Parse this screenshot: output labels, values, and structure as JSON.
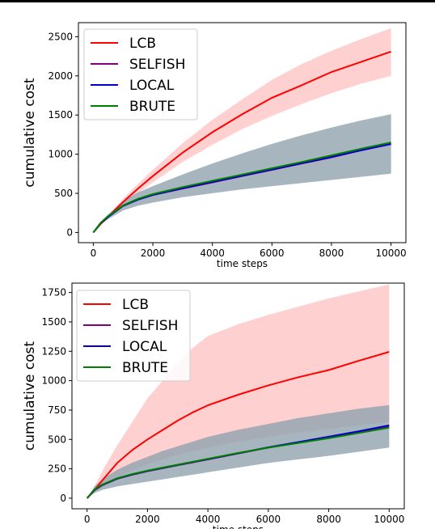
{
  "colors": {
    "LCB": "#ff0000",
    "SELFISH": "#800080",
    "LOCAL": "#0000cc",
    "BRUTE": "#008000",
    "LCB_band": "#ffb0b0",
    "SELFISH_band": "#b9a0cf",
    "LOCAL_band": "#7a86b8",
    "BRUTE_band": "#9fc49f"
  },
  "chart_data": [
    {
      "type": "line",
      "xlabel": "time steps",
      "ylabel": "cumulative cost",
      "xlim": [
        -500,
        10500
      ],
      "ylim": [
        -130,
        2680
      ],
      "xticks": [
        0,
        2000,
        4000,
        6000,
        8000,
        10000
      ],
      "yticks": [
        0,
        500,
        1000,
        1500,
        2000,
        2500
      ],
      "legend": "top-left",
      "grid": false,
      "x": [
        0,
        250,
        500,
        1000,
        1500,
        2000,
        3000,
        4000,
        5000,
        6000,
        7000,
        8000,
        9000,
        10000
      ],
      "series": [
        {
          "name": "LCB",
          "values": [
            0,
            110,
            200,
            390,
            560,
            720,
            1020,
            1280,
            1510,
            1720,
            1880,
            2050,
            2180,
            2310
          ],
          "lower": [
            0,
            100,
            180,
            350,
            500,
            640,
            900,
            1120,
            1320,
            1490,
            1640,
            1780,
            1900,
            2000
          ],
          "upper": [
            0,
            125,
            225,
            430,
            620,
            800,
            1140,
            1440,
            1700,
            1950,
            2150,
            2320,
            2470,
            2610
          ]
        },
        {
          "name": "SELFISH",
          "values": [
            0,
            120,
            200,
            340,
            420,
            480,
            560,
            640,
            720,
            800,
            880,
            960,
            1050,
            1130
          ],
          "lower": [
            0,
            105,
            170,
            280,
            340,
            380,
            450,
            500,
            550,
            590,
            630,
            670,
            710,
            750
          ],
          "upper": [
            0,
            135,
            230,
            400,
            510,
            590,
            740,
            880,
            1010,
            1130,
            1240,
            1340,
            1430,
            1510
          ]
        },
        {
          "name": "LOCAL",
          "values": [
            0,
            120,
            200,
            340,
            420,
            480,
            565,
            645,
            725,
            805,
            885,
            965,
            1050,
            1130
          ],
          "lower": [
            0,
            105,
            172,
            282,
            342,
            382,
            452,
            502,
            552,
            592,
            632,
            672,
            712,
            752
          ],
          "upper": [
            0,
            135,
            230,
            400,
            510,
            590,
            740,
            880,
            1010,
            1130,
            1240,
            1340,
            1430,
            1510
          ]
        },
        {
          "name": "BRUTE",
          "values": [
            0,
            125,
            210,
            345,
            430,
            490,
            580,
            660,
            740,
            820,
            900,
            985,
            1070,
            1150
          ],
          "lower": [
            0,
            108,
            175,
            285,
            345,
            385,
            455,
            505,
            555,
            595,
            635,
            675,
            715,
            755
          ],
          "upper": [
            0,
            138,
            232,
            402,
            512,
            592,
            742,
            882,
            1012,
            1132,
            1242,
            1342,
            1432,
            1512
          ]
        }
      ]
    },
    {
      "type": "line",
      "xlabel": "time steps",
      "ylabel": "cumulative cost",
      "xlim": [
        -500,
        10500
      ],
      "ylim": [
        -90,
        1830
      ],
      "xticks": [
        0,
        2000,
        4000,
        6000,
        8000,
        10000
      ],
      "yticks": [
        0,
        250,
        500,
        750,
        1000,
        1250,
        1500,
        1750
      ],
      "legend": "top-left",
      "grid": false,
      "x": [
        0,
        250,
        500,
        1000,
        1500,
        2000,
        2500,
        3000,
        3500,
        4000,
        5000,
        6000,
        7000,
        8000,
        9000,
        10000
      ],
      "series": [
        {
          "name": "LCB",
          "values": [
            0,
            70,
            150,
            300,
            410,
            500,
            580,
            660,
            730,
            790,
            880,
            960,
            1030,
            1090,
            1170,
            1245
          ],
          "lower": [
            0,
            45,
            95,
            180,
            240,
            290,
            330,
            370,
            400,
            430,
            480,
            520,
            560,
            590,
            620,
            650
          ],
          "upper": [
            0,
            100,
            230,
            450,
            650,
            850,
            1000,
            1150,
            1280,
            1380,
            1480,
            1560,
            1630,
            1700,
            1760,
            1820
          ]
        },
        {
          "name": "SELFISH",
          "values": [
            0,
            70,
            110,
            165,
            200,
            230,
            255,
            280,
            305,
            330,
            380,
            430,
            475,
            520,
            565,
            610
          ],
          "lower": [
            0,
            45,
            70,
            100,
            120,
            140,
            160,
            180,
            200,
            220,
            260,
            300,
            330,
            360,
            395,
            430
          ],
          "upper": [
            0,
            100,
            160,
            240,
            300,
            350,
            400,
            440,
            480,
            520,
            580,
            630,
            680,
            720,
            760,
            790
          ]
        },
        {
          "name": "LOCAL",
          "values": [
            0,
            72,
            112,
            168,
            203,
            233,
            258,
            283,
            308,
            333,
            383,
            433,
            478,
            523,
            570,
            620
          ],
          "lower": [
            0,
            46,
            71,
            101,
            121,
            141,
            161,
            181,
            201,
            221,
            261,
            301,
            331,
            361,
            396,
            431
          ],
          "upper": [
            0,
            102,
            162,
            242,
            302,
            352,
            402,
            442,
            482,
            522,
            582,
            632,
            682,
            722,
            762,
            792
          ]
        },
        {
          "name": "BRUTE",
          "values": [
            0,
            75,
            115,
            170,
            205,
            235,
            260,
            285,
            310,
            335,
            385,
            430,
            470,
            510,
            555,
            600
          ],
          "lower": [
            0,
            46,
            71,
            101,
            121,
            141,
            161,
            181,
            201,
            221,
            261,
            301,
            331,
            361,
            396,
            431
          ],
          "upper": [
            0,
            102,
            162,
            242,
            302,
            352,
            402,
            442,
            482,
            522,
            582,
            632,
            682,
            722,
            762,
            792
          ]
        }
      ]
    }
  ]
}
